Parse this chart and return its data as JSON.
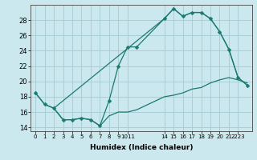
{
  "xlabel": "Humidex (Indice chaleur)",
  "bg_color": "#cce8ef",
  "grid_color": "#aacfd8",
  "line_color": "#1a7a6e",
  "line1_x": [
    0,
    1,
    2,
    3,
    4,
    5,
    6,
    7,
    8,
    9,
    10,
    11,
    14,
    15,
    16,
    17,
    18,
    19,
    20,
    21,
    22,
    23
  ],
  "line1_y": [
    18.5,
    17.0,
    16.5,
    15.0,
    15.0,
    15.2,
    15.0,
    14.2,
    17.5,
    22.0,
    24.5,
    24.5,
    28.2,
    29.5,
    28.5,
    29.0,
    29.0,
    28.2,
    26.5,
    24.2,
    20.5,
    19.5
  ],
  "line2_x": [
    0,
    1,
    2,
    14,
    15,
    16,
    17,
    18,
    19,
    20,
    21,
    22,
    23
  ],
  "line2_y": [
    18.5,
    17.0,
    16.5,
    28.2,
    29.5,
    28.5,
    29.0,
    29.0,
    28.2,
    26.5,
    24.2,
    20.5,
    19.5
  ],
  "line3_x": [
    2,
    3,
    4,
    5,
    6,
    7,
    8,
    9,
    10,
    11,
    14,
    15,
    16,
    17,
    18,
    19,
    20,
    21,
    22,
    23
  ],
  "line3_y": [
    16.5,
    15.0,
    15.0,
    15.2,
    15.0,
    14.2,
    15.5,
    16.0,
    16.0,
    16.3,
    18.0,
    18.2,
    18.5,
    19.0,
    19.2,
    19.8,
    20.2,
    20.5,
    20.2,
    19.8
  ],
  "xlim": [
    -0.5,
    23.5
  ],
  "ylim": [
    13.5,
    30.0
  ],
  "yticks": [
    14,
    16,
    18,
    20,
    22,
    24,
    26,
    28
  ],
  "xtick_positions": [
    0,
    1,
    2,
    3,
    4,
    5,
    6,
    7,
    8,
    9,
    10,
    14,
    15,
    16,
    17,
    18,
    19,
    20,
    21,
    22
  ],
  "xtick_labels": [
    "0",
    "1",
    "2",
    "3",
    "4",
    "5",
    "6",
    "7",
    "8",
    "9",
    "1011",
    "14",
    "15",
    "16",
    "17",
    "18",
    "19",
    "20",
    "21",
    "2223"
  ]
}
